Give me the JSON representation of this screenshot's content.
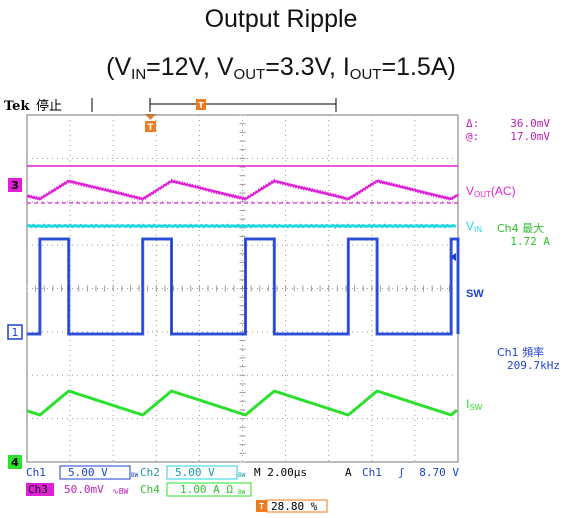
{
  "title": {
    "line1": "Output Ripple"
  },
  "conditions": [
    {
      "prefix": "(V",
      "sub": "IN",
      "rest": "=12V, "
    },
    {
      "prefix": "V",
      "sub": "OUT",
      "rest": "=3.3V, "
    },
    {
      "prefix": "I",
      "sub": "OUT",
      "rest": "=1.5A)"
    }
  ],
  "scope": {
    "brand": "Tek",
    "status": "停止",
    "trigger_marker": "T",
    "cursor": {
      "delta_label": "Δ:",
      "delta_value": "36.0mV",
      "at_label": "@:",
      "at_value": "17.0mV"
    },
    "colors": {
      "ch1": "#1c3fd6",
      "ch2": "#22d6e2",
      "ch3": "#e020d8",
      "ch4": "#2ee02e",
      "trigger": "#f07a1e",
      "grid": "#9a9a9a"
    },
    "labels": {
      "vout": {
        "main": "V",
        "sub": "OUT",
        "suffix": "(AC)"
      },
      "vin": {
        "main": "V",
        "sub": "IN"
      },
      "sw": {
        "main": "SW"
      },
      "isw": {
        "main": "I",
        "sub": "SW"
      }
    },
    "measurements": [
      {
        "name": "Ch4 最大",
        "value": "1.72 A"
      },
      {
        "name": "Ch1 頻率",
        "value": "209.7kHz"
      }
    ],
    "channel_markers": {
      "ch3": "3",
      "ch1": "1",
      "ch4": "4"
    },
    "readout": {
      "ch1_label": "Ch1",
      "ch1_scale": "5.00 V",
      "ch1_bw": "BW",
      "ch2_label": "Ch2",
      "ch2_scale": "5.00 V",
      "ch2_bw": "BW",
      "timebase": "M 2.00µs",
      "trig_mode": "A",
      "trig_src": "Ch1",
      "trig_slope": "ʃ",
      "trig_level": "8.70 V",
      "ch3_label": "Ch3",
      "ch3_scale": "50.0mV",
      "ch3_cpl": "∿BW",
      "ch4_label": "Ch4",
      "ch4_scale": "1.00 A Ω",
      "ch4_bw": "BW",
      "trigger_position": "28.80 %"
    }
  },
  "chart_data": {
    "type": "line",
    "x_unit": "µs",
    "xlim": [
      0,
      20
    ],
    "time_per_div": "2.00µs",
    "switching_frequency_khz": 209.7,
    "series": [
      {
        "name": "V_OUT(AC)",
        "channel": "Ch3",
        "scale": "50.0mV/div",
        "shape": "triangle",
        "ripple_mV": 36.0,
        "period_us": 4.77
      },
      {
        "name": "V_IN",
        "channel": "Ch2",
        "scale": "5.00 V/div",
        "shape": "dc",
        "level_V": 12
      },
      {
        "name": "SW",
        "channel": "Ch1",
        "scale": "5.00 V/div",
        "shape": "square",
        "high_V": 12,
        "low_V": 0,
        "period_us": 4.77,
        "duty": 0.28
      },
      {
        "name": "I_SW",
        "channel": "Ch4",
        "scale": "1.00 A/div",
        "shape": "triangle",
        "max_A": 1.72,
        "period_us": 4.77
      }
    ]
  }
}
